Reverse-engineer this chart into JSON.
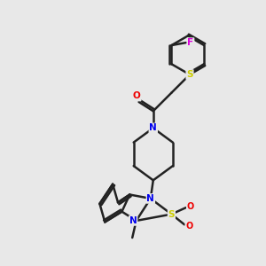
{
  "bg_color": "#e8e8e8",
  "bond_color": "#222222",
  "bond_width": 1.8,
  "figsize": [
    3.0,
    3.0
  ],
  "dpi": 100,
  "atom_colors": {
    "N": "#0000ee",
    "O": "#ee0000",
    "S_thio": "#cccc00",
    "S_sulfonyl": "#cccc00",
    "F": "#dd00dd",
    "C": "#222222"
  },
  "xlim": [
    0,
    10
  ],
  "ylim": [
    0,
    10
  ]
}
